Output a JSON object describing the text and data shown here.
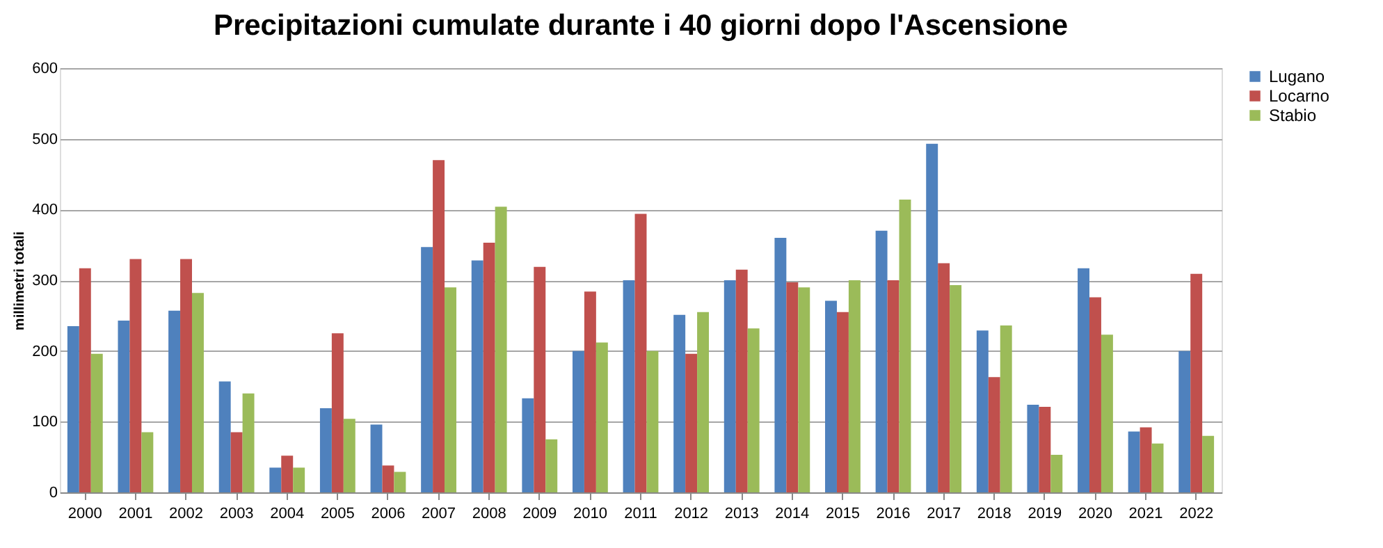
{
  "chart_data": {
    "type": "bar",
    "title": "Precipitazioni cumulate durante i 40 giorni dopo l'Ascensione",
    "ylabel": "millimetri totali",
    "categories": [
      "2000",
      "2001",
      "2002",
      "2003",
      "2004",
      "2005",
      "2006",
      "2007",
      "2008",
      "2009",
      "2010",
      "2011",
      "2012",
      "2013",
      "2014",
      "2015",
      "2016",
      "2017",
      "2018",
      "2019",
      "2020",
      "2021",
      "2022"
    ],
    "series": [
      {
        "name": "Lugano",
        "color": "#4f81bd",
        "values": [
          235,
          243,
          257,
          157,
          35,
          119,
          96,
          347,
          328,
          133,
          200,
          300,
          251,
          300,
          360,
          271,
          370,
          493,
          229,
          124,
          317,
          86,
          200
        ]
      },
      {
        "name": "Locarno",
        "color": "#c0504d",
        "values": [
          317,
          330,
          330,
          85,
          52,
          225,
          38,
          470,
          353,
          319,
          284,
          394,
          196,
          315,
          297,
          255,
          300,
          324,
          163,
          121,
          276,
          92,
          309
        ]
      },
      {
        "name": "Stabio",
        "color": "#9bbb59",
        "values": [
          196,
          85,
          282,
          140,
          35,
          104,
          29,
          290,
          404,
          75,
          212,
          200,
          255,
          232,
          290,
          300,
          414,
          293,
          236,
          53,
          223,
          69,
          80
        ]
      }
    ],
    "ylim": [
      0,
      600
    ],
    "yticks": [
      0,
      100,
      200,
      300,
      400,
      500,
      600
    ],
    "grid": "y",
    "legend": "right"
  }
}
